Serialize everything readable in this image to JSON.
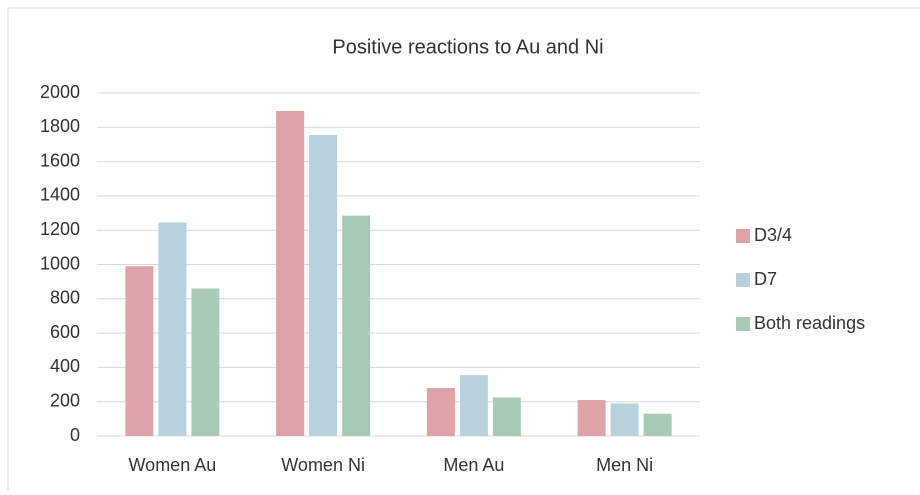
{
  "chart_data": {
    "type": "bar",
    "title": "Positive reactions to Au and Ni",
    "categories": [
      "Women Au",
      "Women Ni",
      "Men Au",
      "Men Ni"
    ],
    "series": [
      {
        "name": "D3/4",
        "color": "#dea3a8",
        "values": [
          990,
          1895,
          280,
          210
        ]
      },
      {
        "name": "D7",
        "color": "#b8d1dc",
        "values": [
          1245,
          1755,
          355,
          190
        ]
      },
      {
        "name": "Both readings",
        "color": "#a9cbb6",
        "values": [
          860,
          1285,
          225,
          130
        ]
      }
    ],
    "ylim": [
      0,
      2000
    ],
    "yticks": [
      0,
      200,
      400,
      600,
      800,
      1000,
      1200,
      1400,
      1600,
      1800,
      2000
    ],
    "grid": true,
    "legend": "right"
  }
}
